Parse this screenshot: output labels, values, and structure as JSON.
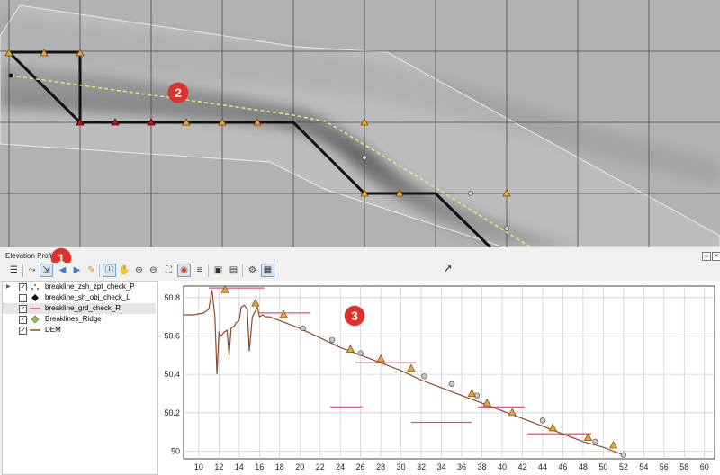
{
  "map": {
    "badges": [
      "2"
    ]
  },
  "panel": {
    "title": "Elevation Profile",
    "badge": "1",
    "float_glyph": "▭",
    "close_glyph": "✕"
  },
  "toolbar": {
    "buttons": [
      {
        "name": "settings-icon",
        "glyph": "☰"
      },
      {
        "name": "capture-curve-icon",
        "glyph": "⤳"
      },
      {
        "name": "capture-from-feature-icon",
        "glyph": "⇲"
      },
      {
        "name": "nudge-left-icon",
        "glyph": "◀"
      },
      {
        "name": "nudge-right-icon",
        "glyph": "▶"
      },
      {
        "name": "clear-icon",
        "glyph": "✎"
      },
      {
        "name": "identify-icon",
        "glyph": "ⓘ"
      },
      {
        "name": "pan-icon",
        "glyph": "✋"
      },
      {
        "name": "zoom-in-icon",
        "glyph": "⊕"
      },
      {
        "name": "zoom-out-icon",
        "glyph": "⊖"
      },
      {
        "name": "zoom-full-icon",
        "glyph": "⛶"
      },
      {
        "name": "snapping-icon",
        "glyph": "◉"
      },
      {
        "name": "tolerance-icon",
        "glyph": "≡"
      },
      {
        "name": "export-image-icon",
        "glyph": "▣"
      },
      {
        "name": "export-3d-icon",
        "glyph": "▤"
      },
      {
        "name": "options-icon",
        "glyph": "⚙"
      },
      {
        "name": "layer-tree-icon",
        "glyph": "▦"
      }
    ]
  },
  "layers": [
    {
      "name": "breakline_zsh_zpt_check_P",
      "checked": true,
      "symbol": "points",
      "expand": "▶"
    },
    {
      "name": "breakline_sh_obj_check_L",
      "checked": false,
      "symbol": "diamond-black",
      "expand": ""
    },
    {
      "name": "breakline_grd_check_R",
      "checked": true,
      "symbol": "line-pink",
      "expand": "",
      "selected": true
    },
    {
      "name": "Breaklines_Ridge",
      "checked": true,
      "symbol": "diamond-green",
      "expand": ""
    },
    {
      "name": "DEM",
      "checked": true,
      "symbol": "line-brown",
      "expand": ""
    }
  ],
  "plot": {
    "badge": "3"
  },
  "chart_data": {
    "type": "line",
    "xlim": [
      8.5,
      61
    ],
    "ylim": [
      49.96,
      50.86
    ],
    "x_ticks": [
      10,
      12,
      14,
      16,
      18,
      20,
      22,
      24,
      26,
      28,
      30,
      32,
      34,
      36,
      38,
      40,
      42,
      44,
      46,
      48,
      50,
      52,
      54,
      56,
      58,
      60
    ],
    "y_ticks": [
      50,
      50.2,
      50.4,
      50.6,
      50.8
    ],
    "y_tick_labels": [
      "50",
      "50.2",
      "50.4",
      "50.6",
      "50.8"
    ],
    "grid": true,
    "dem_profile": {
      "color": "#8b4a2b",
      "x": [
        8.5,
        9.5,
        10.5,
        11,
        11.3,
        11.6,
        11.8,
        12.0,
        12.2,
        12.5,
        12.8,
        13.0,
        13.2,
        13.5,
        13.7,
        14.0,
        14.2,
        14.5,
        14.8,
        15.0,
        15.3,
        15.5,
        15.8,
        16.0,
        16.3,
        16.6,
        17.0,
        17.5,
        18.0,
        19,
        20,
        22,
        24,
        26,
        28,
        30,
        32,
        34,
        36,
        38,
        40,
        42,
        44,
        46,
        48,
        50,
        51,
        52
      ],
      "y": [
        50.71,
        50.71,
        50.72,
        50.74,
        50.84,
        50.7,
        50.4,
        50.62,
        50.6,
        50.62,
        50.63,
        50.5,
        50.64,
        50.65,
        50.67,
        50.68,
        50.75,
        50.76,
        50.74,
        50.52,
        50.7,
        50.72,
        50.75,
        50.7,
        50.71,
        50.7,
        50.7,
        50.69,
        50.68,
        50.66,
        50.64,
        50.59,
        50.54,
        50.5,
        50.46,
        50.42,
        50.37,
        50.33,
        50.29,
        50.25,
        50.21,
        50.17,
        50.13,
        50.09,
        50.05,
        50.02,
        50.0,
        49.98
      ]
    },
    "ridge_points": {
      "color": "#e8a33b",
      "x": [
        12.6,
        15.6,
        18.4,
        25.0,
        28.0,
        31.0,
        37.0,
        38.5,
        41.0,
        45.0,
        48.5,
        51.0
      ],
      "y": [
        50.84,
        50.77,
        50.71,
        50.53,
        50.48,
        50.43,
        50.3,
        50.25,
        50.2,
        50.12,
        50.07,
        50.03
      ]
    },
    "check_points": {
      "color": "#c8c8c8",
      "x": [
        20.3,
        23.2,
        26.0,
        32.3,
        35.0,
        37.5,
        44.0,
        49.2,
        52.0
      ],
      "y": [
        50.64,
        50.58,
        50.51,
        50.39,
        50.35,
        50.29,
        50.16,
        50.05,
        49.98
      ]
    },
    "check_lines": {
      "color": "#e05070",
      "segments": [
        {
          "x": [
            11.0,
            16.5
          ],
          "y": 50.85
        },
        {
          "x": [
            16.0,
            21.0
          ],
          "y": 50.72
        },
        {
          "x": [
            23.0,
            26.2
          ],
          "y": 50.23
        },
        {
          "x": [
            25.5,
            31.5
          ],
          "y": 50.46
        },
        {
          "x": [
            31.0,
            37.0
          ],
          "y": 50.15
        },
        {
          "x": [
            37.6,
            42.2
          ],
          "y": 50.23
        },
        {
          "x": [
            42.5,
            48.8
          ],
          "y": 50.09
        }
      ]
    }
  }
}
